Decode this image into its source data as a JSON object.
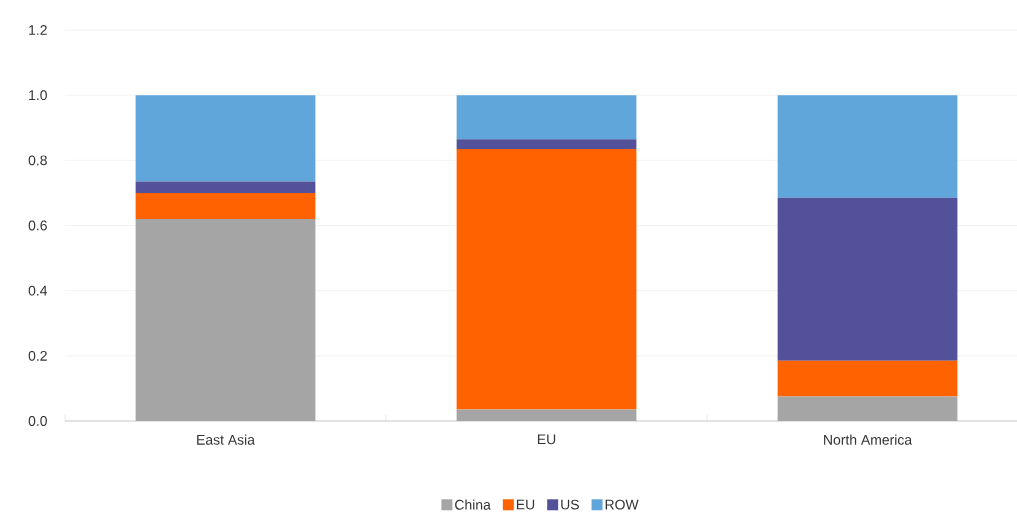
{
  "chart_data": {
    "type": "bar",
    "stacked": true,
    "categories": [
      "East Asia",
      "EU",
      "North America"
    ],
    "series": [
      {
        "name": "China",
        "color": "#a5a5a5",
        "values": [
          0.62,
          0.035,
          0.075
        ]
      },
      {
        "name": "EU",
        "color": "#ff6200",
        "values": [
          0.08,
          0.8,
          0.11
        ]
      },
      {
        "name": "US",
        "color": "#525199",
        "values": [
          0.035,
          0.03,
          0.5
        ]
      },
      {
        "name": "ROW",
        "color": "#60a6da",
        "values": [
          0.265,
          0.135,
          0.315
        ]
      }
    ],
    "ylim": [
      0,
      1.2
    ],
    "yticks": [
      {
        "value": 0,
        "label": "0.0"
      },
      {
        "value": 0.2,
        "label": "0.2"
      },
      {
        "value": 0.4,
        "label": "0.4"
      },
      {
        "value": 0.6,
        "label": "0.6"
      },
      {
        "value": 0.8,
        "label": "0.8"
      },
      {
        "value": 1.0,
        "label": "1.0"
      },
      {
        "value": 1.2,
        "label": "1.2"
      }
    ],
    "grid": "y",
    "legend": "bottom"
  }
}
